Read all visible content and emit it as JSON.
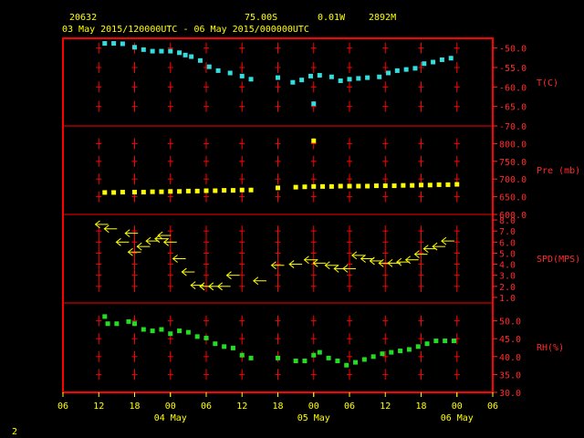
{
  "header": {
    "station": "20632",
    "latitude": "75.00S",
    "longitude": "0.01W",
    "elevation": "2892M",
    "period": "03 May 2015/120000UTC - 06 May 2015/000000UTC"
  },
  "footer": {
    "page_number": "2"
  },
  "colors": {
    "background": "#000000",
    "frame": "#ff0000",
    "text": "#ffff00",
    "axis_labels": "#ff2a2a",
    "temperature": "#33dddd",
    "pressure": "#ffff00",
    "wind": "#ffff00",
    "humidity": "#22dd22"
  },
  "chart_data": {
    "type": "scatter",
    "x_axis": {
      "unit": "hours since 03 May 2015 06UTC",
      "range": [
        0,
        72
      ],
      "tick_labels": [
        "06",
        "12",
        "18",
        "00",
        "06",
        "12",
        "18",
        "00",
        "06",
        "12",
        "18",
        "00",
        "06"
      ],
      "tick_hours": [
        0,
        6,
        12,
        18,
        24,
        30,
        36,
        42,
        48,
        54,
        60,
        66,
        72
      ],
      "day_labels": [
        {
          "label": "04 May",
          "hour": 18
        },
        {
          "label": "05 May",
          "hour": 42
        },
        {
          "label": "06 May",
          "hour": 66
        }
      ],
      "marker_hours": [
        6,
        12,
        18,
        24,
        30,
        36,
        42,
        48,
        54,
        60,
        66
      ]
    },
    "panels": [
      {
        "id": "temperature",
        "label": "T(C)",
        "ylim": [
          -70,
          -47.5
        ],
        "ticks": [
          -50.0,
          -55.0,
          -60.0,
          -65.0,
          -70.0
        ],
        "tick_labels": [
          "-50.0",
          "-55.0",
          "-60.0",
          "-65.0",
          "-70.0"
        ],
        "marker_values": [
          -50,
          -55,
          -60,
          -65
        ],
        "x": [
          7,
          8.5,
          10,
          12,
          13.5,
          15,
          16.5,
          18,
          19.5,
          20.5,
          21.5,
          23,
          24.5,
          26,
          28,
          30,
          31.5,
          36,
          38.5,
          40,
          41.5,
          42,
          43,
          45,
          46.5,
          48,
          49.5,
          51,
          53,
          54.5,
          56,
          57.5,
          59,
          60.5,
          62,
          63.5,
          65
        ],
        "values": [
          -48.8,
          -48.8,
          -48.9,
          -49.8,
          -50.4,
          -50.8,
          -50.8,
          -50.8,
          -51.2,
          -51.8,
          -52.2,
          -53.2,
          -54.8,
          -55.8,
          -56.4,
          -57.2,
          -58,
          -57.6,
          -58.8,
          -58.2,
          -57.2,
          -64.3,
          -57,
          -57.4,
          -58.4,
          -58,
          -57.8,
          -57.6,
          -57.4,
          -56.4,
          -55.8,
          -55.5,
          -55.2,
          -54,
          -53.6,
          -53,
          -52.6
        ]
      },
      {
        "id": "pressure",
        "label": "Pre (mb)",
        "ylim": [
          600,
          850
        ],
        "ticks": [
          800.0,
          750.0,
          700.0,
          650.0,
          600.0
        ],
        "tick_labels": [
          "800.0",
          "750.0",
          "700.0",
          "650.0",
          "600.0"
        ],
        "marker_values": [
          800,
          750,
          700,
          650
        ],
        "x": [
          7,
          8.5,
          10,
          12,
          13.5,
          15,
          16.5,
          18,
          19.5,
          21,
          22.5,
          24,
          25.5,
          27,
          28.5,
          30,
          31.5,
          36,
          39,
          40.5,
          42,
          43.5,
          45,
          46.5,
          48,
          49.5,
          51,
          52.5,
          54,
          55.5,
          57,
          58.5,
          60,
          61.5,
          63,
          64.5,
          66,
          42
        ],
        "values": [
          662,
          662,
          663,
          663,
          663,
          664,
          664,
          665,
          665,
          666,
          666,
          667,
          667,
          668,
          668,
          669,
          669,
          675,
          677,
          678,
          679,
          679,
          679,
          680,
          680,
          680,
          680,
          681,
          681,
          681,
          682,
          682,
          683,
          683,
          684,
          684,
          685,
          808
        ]
      },
      {
        "id": "wind",
        "label": "SPD(MPS)",
        "ylim": [
          0.5,
          8.5
        ],
        "ticks": [
          8.0,
          7.0,
          6.0,
          5.0,
          4.0,
          3.0,
          2.0,
          1.0
        ],
        "tick_labels": [
          "8.0",
          "7.0",
          "6.0",
          "5.0",
          "4.0",
          "3.0",
          "2.0",
          "1.0"
        ],
        "marker_values": [
          7,
          6,
          5,
          4,
          3,
          2
        ],
        "x": [
          6.5,
          8,
          10,
          11.5,
          12,
          13.5,
          15,
          16.5,
          17,
          18,
          19.5,
          21,
          22.5,
          24,
          25.5,
          27,
          28.5,
          33,
          36,
          39,
          41.5,
          43,
          45,
          46.5,
          48,
          49.5,
          51,
          52.5,
          54,
          55.5,
          57,
          58.5,
          60,
          61.5,
          63,
          64.5
        ],
        "values": [
          7.6,
          7.2,
          6.0,
          6.8,
          5.1,
          5.6,
          6.1,
          6.3,
          6.6,
          6.0,
          4.5,
          3.3,
          2.1,
          2.0,
          2.0,
          2.0,
          3.0,
          2.5,
          3.9,
          4.0,
          4.4,
          4.1,
          3.9,
          3.6,
          3.6,
          4.8,
          4.5,
          4.3,
          4.1,
          4.1,
          4.2,
          4.4,
          4.9,
          5.4,
          5.6,
          6.1
        ]
      },
      {
        "id": "humidity",
        "label": "RH(%)",
        "ylim": [
          30,
          55
        ],
        "ticks": [
          50.0,
          45.0,
          40.0,
          35.0,
          30.0
        ],
        "tick_labels": [
          "50.0",
          "45.0",
          "40.0",
          "35.0",
          "30.0"
        ],
        "marker_values": [
          50,
          45,
          40,
          35
        ],
        "x": [
          7,
          7.5,
          9,
          11,
          12,
          13.5,
          15,
          16.5,
          18,
          19.5,
          21,
          22.5,
          24,
          25.5,
          27,
          28.5,
          30,
          31.5,
          36,
          39,
          40.5,
          42,
          43,
          44.5,
          46,
          47.5,
          49,
          50.5,
          52,
          53.5,
          55,
          56.5,
          58,
          59.5,
          61,
          62.5,
          64,
          65.5
        ],
        "values": [
          51.2,
          49.2,
          49.2,
          49.8,
          49.2,
          47.6,
          47.2,
          47.6,
          46.4,
          47.2,
          46.8,
          45.6,
          45.2,
          43.6,
          42.8,
          42.4,
          40.4,
          39.6,
          39.6,
          38.8,
          38.8,
          40.4,
          41.2,
          39.6,
          38.8,
          37.6,
          38.4,
          39.2,
          40.0,
          40.8,
          41.2,
          41.6,
          42.0,
          42.8,
          43.6,
          44.4,
          44.4,
          44.4
        ]
      }
    ]
  }
}
